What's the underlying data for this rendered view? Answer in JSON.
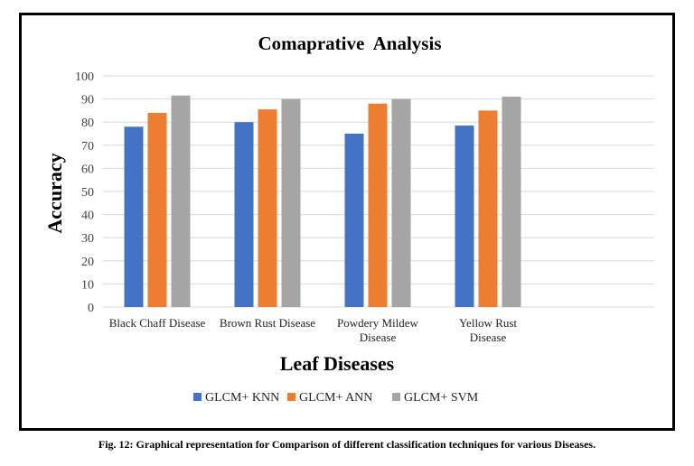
{
  "chart_data": {
    "type": "bar",
    "title": "Comaprative  Analysis",
    "xlabel": "Leaf Diseases",
    "ylabel": "Accuracy",
    "ylim": [
      0,
      100
    ],
    "yticks": [
      0,
      10,
      20,
      30,
      40,
      50,
      60,
      70,
      80,
      90,
      100
    ],
    "categories": [
      [
        "Black Chaff Disease"
      ],
      [
        "Brown Rust Disease"
      ],
      [
        "Powdery Mildew",
        "Disease"
      ],
      [
        "Yellow Rust",
        "Disease"
      ]
    ],
    "series": [
      {
        "name": "GLCM+ KNN",
        "color": "#4472C4",
        "values": [
          78,
          80,
          75,
          78.5
        ]
      },
      {
        "name": "GLCM+ ANN",
        "color": "#ED7D31",
        "values": [
          84,
          85.5,
          88,
          85
        ]
      },
      {
        "name": "GLCM+ SVM",
        "color": "#A5A5A5",
        "values": [
          91.5,
          90,
          90,
          91
        ]
      }
    ],
    "grid": true,
    "legend": "bottom"
  },
  "caption": "Fig. 12: Graphical representation for Comparison of different classification techniques  for various Diseases."
}
